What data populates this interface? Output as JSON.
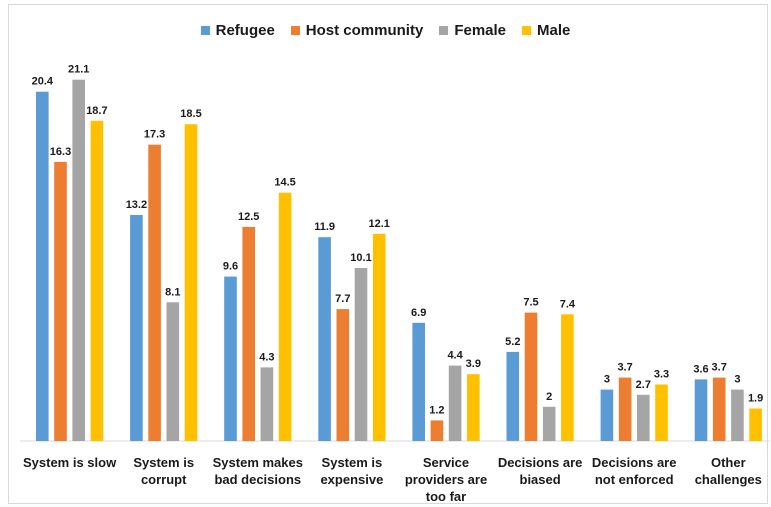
{
  "chart_data": {
    "type": "bar",
    "title": "",
    "xlabel": "",
    "ylabel": "",
    "ylim": [
      0,
      24
    ],
    "grid": false,
    "legend_position": "top",
    "categories": [
      [
        "System is slow"
      ],
      [
        "System is",
        "corrupt"
      ],
      [
        "System makes",
        "bad decisions"
      ],
      [
        "System is",
        "expensive"
      ],
      [
        "Service",
        "providers are",
        "too far"
      ],
      [
        "Decisions are",
        "biased"
      ],
      [
        "Decisions are",
        "not enforced"
      ],
      [
        "Other",
        "challenges"
      ]
    ],
    "series": [
      {
        "name": "Refugee",
        "color": "#5b9bd5",
        "values": [
          20.4,
          13.2,
          9.6,
          11.9,
          6.9,
          5.2,
          3,
          3.6
        ]
      },
      {
        "name": "Host community",
        "color": "#ed7d31",
        "values": [
          16.3,
          17.3,
          12.5,
          7.7,
          1.2,
          7.5,
          3.7,
          3.7
        ]
      },
      {
        "name": "Female",
        "color": "#a5a5a5",
        "values": [
          21.1,
          8.1,
          4.3,
          10.1,
          4.4,
          2,
          2.7,
          3
        ]
      },
      {
        "name": "Male",
        "color": "#ffc000",
        "values": [
          18.7,
          18.5,
          14.5,
          12.1,
          3.9,
          7.4,
          3.3,
          1.9
        ]
      }
    ]
  }
}
